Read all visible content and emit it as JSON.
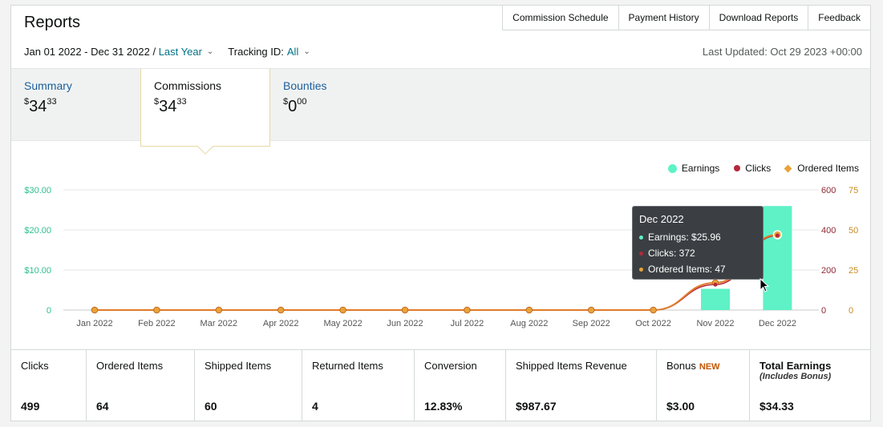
{
  "title": "Reports",
  "topnav": [
    "Commission Schedule",
    "Payment History",
    "Download Reports",
    "Feedback"
  ],
  "filters": {
    "date_range": "Jan 01 2022 - Dec 31 2022",
    "separator": " / ",
    "period": "Last Year",
    "tracking_label": "Tracking ID:",
    "tracking_value": "All"
  },
  "last_updated": "Last Updated: Oct 29 2023 +00:00",
  "tabs": [
    {
      "label": "Summary",
      "currency": "$",
      "whole": "34",
      "cents": "33"
    },
    {
      "label": "Commissions",
      "currency": "$",
      "whole": "34",
      "cents": "33"
    },
    {
      "label": "Bounties",
      "currency": "$",
      "whole": "0",
      "cents": "00"
    }
  ],
  "legend": {
    "earnings": "Earnings",
    "clicks": "Clicks",
    "ordered": "Ordered Items"
  },
  "colors": {
    "earnings": "#5ef2c6",
    "clicks": "#b5283b",
    "ordered": "#e8a33a",
    "ordered_line": "#e07a2a",
    "link": "#007185"
  },
  "chart_data": {
    "type": "bar",
    "categories": [
      "Jan 2022",
      "Feb 2022",
      "Mar 2022",
      "Apr 2022",
      "May 2022",
      "Jun 2022",
      "Jul 2022",
      "Aug 2022",
      "Sep 2022",
      "Oct 2022",
      "Nov 2022",
      "Dec 2022"
    ],
    "series": [
      {
        "name": "Earnings",
        "type": "bar",
        "axis": "left",
        "values": [
          0,
          0,
          0,
          0,
          0,
          0,
          0,
          0,
          0,
          0,
          5.3,
          25.96
        ]
      },
      {
        "name": "Clicks",
        "type": "line",
        "axis": "right-1",
        "values": [
          0,
          0,
          0,
          0,
          0,
          0,
          0,
          0,
          0,
          0,
          127,
          372
        ]
      },
      {
        "name": "Ordered Items",
        "type": "line",
        "axis": "right-2",
        "values": [
          0,
          0,
          0,
          0,
          0,
          0,
          0,
          0,
          0,
          0,
          17,
          47
        ]
      }
    ],
    "y_left": {
      "ticks": [
        "0",
        "$10.00",
        "$20.00",
        "$30.00"
      ],
      "max": 30
    },
    "y_right_1": {
      "ticks": [
        "0",
        "200",
        "400",
        "600"
      ],
      "max": 600
    },
    "y_right_2": {
      "ticks": [
        "0",
        "25",
        "50",
        "75"
      ],
      "max": 75
    },
    "grid": true,
    "legend_position": "top-right"
  },
  "tooltip": {
    "title": "Dec 2022",
    "earnings": "Earnings: $25.96",
    "clicks": "Clicks: 372",
    "ordered": "Ordered Items: 47"
  },
  "stats": [
    {
      "label": "Clicks",
      "value": "499"
    },
    {
      "label": "Ordered Items",
      "value": "64"
    },
    {
      "label": "Shipped Items",
      "value": "60"
    },
    {
      "label": "Returned Items",
      "value": "4"
    },
    {
      "label": "Conversion",
      "value": "12.83%"
    },
    {
      "label": "Shipped Items Revenue",
      "value": "$987.67"
    },
    {
      "label": "Bonus",
      "badge": "NEW",
      "value": "$3.00"
    },
    {
      "label": "Total Earnings",
      "sub": "(Includes Bonus)",
      "value": "$34.33"
    }
  ]
}
